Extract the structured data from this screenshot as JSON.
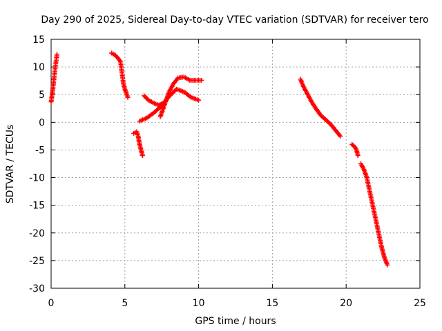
{
  "chart_data": {
    "type": "scatter",
    "title": "Day 290 of 2025, Sidereal Day-to-day VTEC variation (SDTVAR) for receiver tero",
    "xlabel": "GPS time / hours",
    "ylabel": "SDTVAR / TECUs",
    "xlim": [
      0,
      25
    ],
    "ylim": [
      -30,
      15
    ],
    "x_ticks": [
      0,
      5,
      10,
      15,
      20,
      25
    ],
    "y_ticks": [
      -30,
      -25,
      -20,
      -15,
      -10,
      -5,
      0,
      5,
      10,
      15
    ],
    "grid": true,
    "marker": "+",
    "series": [
      {
        "name": "SDTVAR",
        "color": "#ff0000",
        "segments": [
          {
            "x": [
              0.0,
              0.1,
              0.2,
              0.3,
              0.4
            ],
            "y": [
              3.7,
              5.5,
              8.0,
              10.3,
              12.3
            ]
          },
          {
            "x": [
              4.1,
              4.3,
              4.5,
              4.7,
              4.8,
              4.9,
              5.0,
              5.1,
              5.2
            ],
            "y": [
              12.5,
              12.2,
              11.7,
              11.0,
              9.0,
              7.0,
              6.0,
              5.3,
              4.5
            ]
          },
          {
            "x": [
              5.6,
              5.8,
              5.9,
              6.0,
              6.1,
              6.2
            ],
            "y": [
              -2.0,
              -1.7,
              -2.5,
              -4.0,
              -5.0,
              -6.0
            ]
          },
          {
            "x": [
              6.0,
              6.5,
              7.0,
              7.5,
              8.0,
              8.5,
              9.0,
              9.5,
              10.0
            ],
            "y": [
              0.2,
              0.8,
              1.8,
              3.0,
              4.7,
              6.0,
              5.5,
              4.5,
              4.0
            ]
          },
          {
            "x": [
              6.3,
              6.6,
              7.0,
              7.3,
              7.6
            ],
            "y": [
              4.8,
              4.0,
              3.4,
              3.1,
              3.5
            ]
          },
          {
            "x": [
              7.4,
              7.6,
              7.8,
              8.0,
              8.3,
              8.6,
              9.0,
              9.4,
              9.8,
              10.2
            ],
            "y": [
              1.0,
              2.5,
              4.0,
              5.5,
              7.0,
              8.0,
              8.2,
              7.6,
              7.6,
              7.6
            ]
          },
          {
            "x": [
              16.9,
              17.1,
              17.4,
              17.7,
              18.0,
              18.3,
              18.6,
              19.0,
              19.3,
              19.6
            ],
            "y": [
              7.8,
              6.5,
              5.0,
              3.5,
              2.3,
              1.2,
              0.5,
              -0.5,
              -1.5,
              -2.5
            ]
          },
          {
            "x": [
              20.4,
              20.6,
              20.7,
              20.8
            ],
            "y": [
              -4.0,
              -4.5,
              -5.0,
              -6.0
            ]
          },
          {
            "x": [
              21.0,
              21.2,
              21.4,
              21.6,
              21.8,
              22.0,
              22.2,
              22.4,
              22.6,
              22.8
            ],
            "y": [
              -7.5,
              -8.5,
              -10.0,
              -12.5,
              -15.0,
              -17.5,
              -20.0,
              -22.5,
              -24.5,
              -25.8
            ]
          }
        ]
      }
    ]
  }
}
